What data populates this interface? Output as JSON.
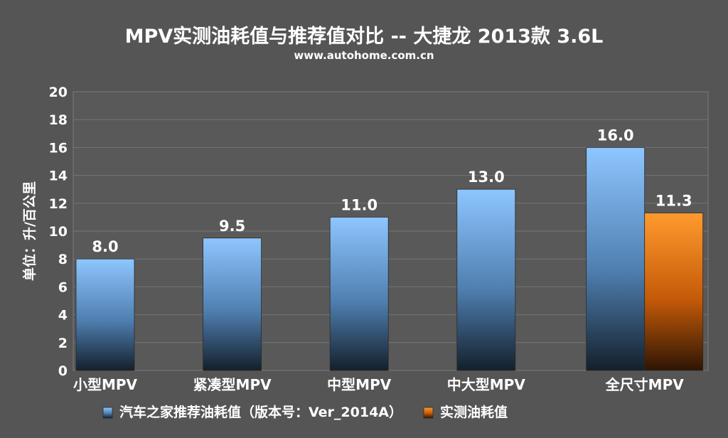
{
  "title": "MPV实测油耗值与推荐值对比 -- 大捷龙 2013款 3.6L",
  "subtitle": "www.autohome.com.cn",
  "chart_data": {
    "type": "bar",
    "ylabel": "单位：升/百公里",
    "ylim": [
      0,
      20
    ],
    "yticks": [
      0,
      2,
      4,
      6,
      8,
      10,
      12,
      14,
      16,
      18,
      20
    ],
    "grid": true,
    "legend_position": "bottom",
    "categories": [
      "小型MPV",
      "紧凑型MPV",
      "中型MPV",
      "中大型MPV",
      "全尺寸MPV"
    ],
    "series": [
      {
        "name": "汽车之家推荐油耗值（版本号：Ver_2014A）",
        "color": "#8cc4ff",
        "values": [
          8.0,
          9.5,
          11.0,
          13.0,
          16.0
        ],
        "labels": [
          "8.0",
          "9.5",
          "11.0",
          "13.0",
          "16.0"
        ]
      },
      {
        "name": "实测油耗值",
        "color": "#ff8c1a",
        "values": [
          null,
          null,
          null,
          null,
          11.3
        ],
        "labels": [
          null,
          null,
          null,
          null,
          "11.3"
        ]
      }
    ]
  }
}
